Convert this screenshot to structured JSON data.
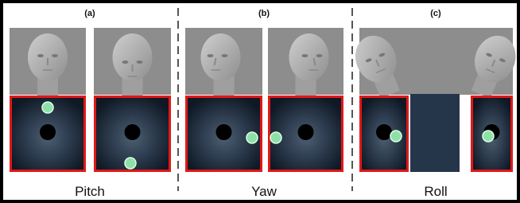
{
  "panels": [
    {
      "label": "(a)",
      "caption": "Pitch"
    },
    {
      "label": "(b)",
      "caption": "Yaw"
    },
    {
      "label": "(c)",
      "caption": "Roll"
    }
  ]
}
